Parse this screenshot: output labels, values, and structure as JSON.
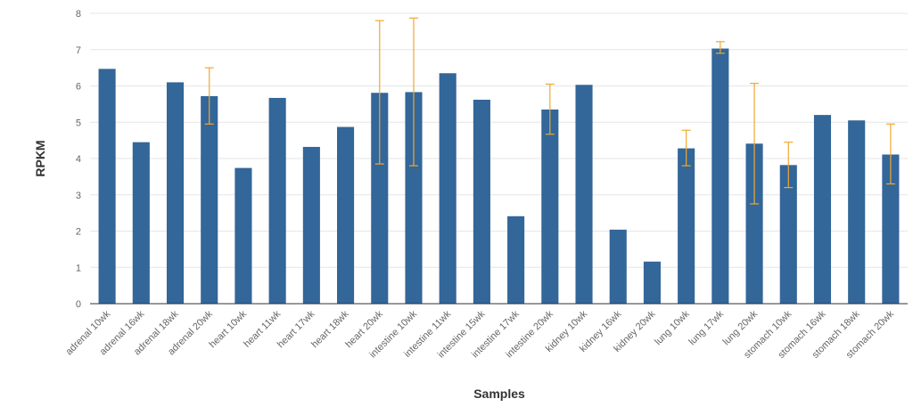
{
  "chart_data": {
    "type": "bar",
    "xlabel": "Samples",
    "ylabel": "RPKM",
    "ylim": [
      0,
      8
    ],
    "yticks": [
      "0",
      "1",
      "2",
      "3",
      "4",
      "5",
      "6",
      "7",
      "8"
    ],
    "grid": true,
    "categories": [
      "adrenal 10wk",
      "adrenal 16wk",
      "adrenal 18wk",
      "adrenal 20wk",
      "heart 10wk",
      "heart 11wk",
      "heart 17wk",
      "heart 18wk",
      "heart 20wk",
      "intestine 10wk",
      "intestine 11wk",
      "intestine 15wk",
      "intestine 17wk",
      "intestine 20wk",
      "kidney 10wk",
      "kidney 16wk",
      "kidney 20wk",
      "lung 10wk",
      "lung 17wk",
      "lung 20wk",
      "stomach 10wk",
      "stomach 16wk",
      "stomach 18wk",
      "stomach 20wk"
    ],
    "values": [
      6.47,
      4.45,
      6.1,
      5.72,
      3.74,
      5.67,
      4.32,
      4.87,
      5.81,
      5.83,
      6.35,
      5.62,
      2.41,
      5.35,
      6.03,
      2.04,
      1.16,
      4.28,
      7.03,
      4.41,
      3.82,
      5.2,
      5.05,
      4.11
    ],
    "error_low": [
      null,
      null,
      null,
      4.95,
      null,
      null,
      null,
      null,
      3.85,
      3.8,
      null,
      null,
      null,
      4.67,
      null,
      null,
      null,
      3.8,
      6.9,
      2.75,
      3.2,
      null,
      null,
      3.3
    ],
    "error_high": [
      null,
      null,
      null,
      6.5,
      null,
      null,
      null,
      null,
      7.8,
      7.87,
      null,
      null,
      null,
      6.05,
      null,
      null,
      null,
      4.78,
      7.22,
      6.07,
      4.45,
      null,
      null,
      4.95
    ],
    "colors": {
      "bar": "#336699",
      "error": "#f0a830",
      "grid": "#e6e6e6",
      "axis": "#333333"
    }
  }
}
